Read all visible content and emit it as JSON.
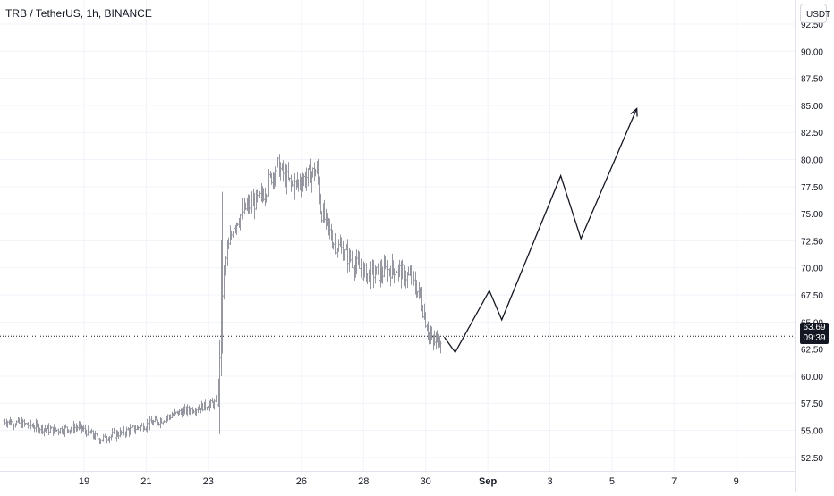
{
  "header": {
    "symbol_title": "TRB / TetherUS, 1h, BINANCE",
    "currency": "USDT"
  },
  "price_badge": {
    "price": "63.69",
    "countdown": "09:39"
  },
  "chart_data": {
    "type": "candlestick",
    "title": "TRB / TetherUS, 1h, BINANCE",
    "ylim": [
      51.25,
      92.5
    ],
    "y_ticks": [
      {
        "value": 52.5,
        "label": "52.50"
      },
      {
        "value": 55,
        "label": "55.00"
      },
      {
        "value": 57.5,
        "label": "57.50"
      },
      {
        "value": 60,
        "label": "60.00"
      },
      {
        "value": 62.5,
        "label": "62.50"
      },
      {
        "value": 65,
        "label": "65.00"
      },
      {
        "value": 67.5,
        "label": "67.50"
      },
      {
        "value": 70,
        "label": "70.00"
      },
      {
        "value": 72.5,
        "label": "72.50"
      },
      {
        "value": 75,
        "label": "75.00"
      },
      {
        "value": 77.5,
        "label": "77.50"
      },
      {
        "value": 80,
        "label": "80.00"
      },
      {
        "value": 82.5,
        "label": "82.50"
      },
      {
        "value": 85,
        "label": "85.00"
      },
      {
        "value": 87.5,
        "label": "87.50"
      },
      {
        "value": 90,
        "label": "90.00"
      },
      {
        "value": 92.5,
        "label": "92.50"
      }
    ],
    "x_ticks": [
      {
        "day": 19,
        "label": "19"
      },
      {
        "day": 21,
        "label": "21"
      },
      {
        "day": 23,
        "label": "23"
      },
      {
        "day": 26,
        "label": "26"
      },
      {
        "day": 28,
        "label": "28"
      },
      {
        "day": 30,
        "label": "30"
      },
      {
        "day": 32,
        "label": "Sep"
      },
      {
        "day": 34,
        "label": "3"
      },
      {
        "day": 36,
        "label": "5"
      },
      {
        "day": 38,
        "label": "7"
      },
      {
        "day": 40,
        "label": "9"
      }
    ],
    "price_series_keyframes": [
      {
        "day": 16.4,
        "price": 55.9
      },
      {
        "day": 17.2,
        "price": 55.5
      },
      {
        "day": 18.0,
        "price": 55.0
      },
      {
        "day": 18.8,
        "price": 55.3
      },
      {
        "day": 19.5,
        "price": 54.2
      },
      {
        "day": 20.2,
        "price": 54.8
      },
      {
        "day": 21.0,
        "price": 55.5
      },
      {
        "day": 21.5,
        "price": 56.0
      },
      {
        "day": 22.0,
        "price": 56.6
      },
      {
        "day": 22.8,
        "price": 57.2
      },
      {
        "day": 23.3,
        "price": 57.6
      },
      {
        "day": 23.4,
        "price": 68.5
      },
      {
        "day": 23.8,
        "price": 74.0
      },
      {
        "day": 24.2,
        "price": 75.5
      },
      {
        "day": 24.7,
        "price": 76.5
      },
      {
        "day": 25.2,
        "price": 79.5
      },
      {
        "day": 25.7,
        "price": 77.5
      },
      {
        "day": 26.2,
        "price": 78.5
      },
      {
        "day": 26.5,
        "price": 79.0
      },
      {
        "day": 26.6,
        "price": 75.5
      },
      {
        "day": 27.0,
        "price": 72.5
      },
      {
        "day": 27.5,
        "price": 71.0
      },
      {
        "day": 28.0,
        "price": 69.5
      },
      {
        "day": 28.5,
        "price": 69.5
      },
      {
        "day": 29.0,
        "price": 70.0
      },
      {
        "day": 29.5,
        "price": 69.0
      },
      {
        "day": 29.8,
        "price": 67.5
      },
      {
        "day": 30.0,
        "price": 65.0
      },
      {
        "day": 30.2,
        "price": 63.0
      },
      {
        "day": 30.5,
        "price": 63.7
      }
    ],
    "last_price": 63.69,
    "projection_path": [
      {
        "day": 30.6,
        "price": 63.6
      },
      {
        "day": 30.95,
        "price": 62.2
      },
      {
        "day": 32.05,
        "price": 67.9
      },
      {
        "day": 32.45,
        "price": 65.2
      },
      {
        "day": 34.35,
        "price": 78.5
      },
      {
        "day": 35.0,
        "price": 72.7
      },
      {
        "day": 36.8,
        "price": 84.7
      }
    ]
  }
}
